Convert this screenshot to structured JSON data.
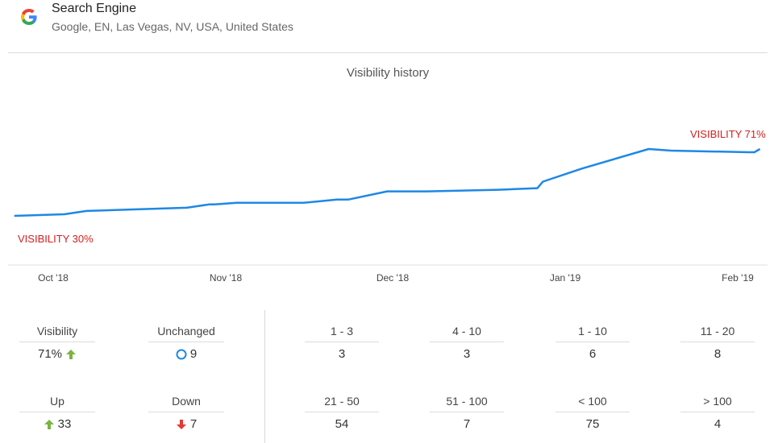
{
  "header": {
    "title": "Search Engine",
    "subtitle": "Google, EN, Las Vegas, NV, USA, United States",
    "logo_colors": [
      "#4285F4",
      "#EA4335",
      "#FBBC05",
      "#34A853"
    ]
  },
  "chart_data": {
    "type": "line",
    "title": "Visibility history",
    "x_tick_labels": [
      "Oct '18",
      "Nov '18",
      "Dec '18",
      "Jan '19",
      "Feb '19"
    ],
    "x": [
      "2018-09-24",
      "2018-10-03",
      "2018-10-07",
      "2018-10-25",
      "2018-10-29",
      "2018-10-30",
      "2018-11-03",
      "2018-11-09",
      "2018-11-15",
      "2018-11-21",
      "2018-11-23",
      "2018-11-30",
      "2018-12-07",
      "2018-12-20",
      "2018-12-27",
      "2018-12-28",
      "2019-01-04",
      "2019-01-16",
      "2019-01-20",
      "2019-02-03",
      "2019-02-04",
      "2019-02-05"
    ],
    "series": [
      {
        "values": [
          30,
          31,
          33,
          35,
          37,
          37,
          38,
          38,
          38,
          40,
          40,
          45,
          45,
          46,
          47,
          51,
          59,
          71,
          70,
          69,
          69,
          71
        ],
        "color": "#1e88e5"
      }
    ],
    "annotations": {
      "start": "VISIBILITY 30%",
      "end": "VISIBILITY 71%"
    },
    "annotation_color": "#d32020",
    "grid": false
  },
  "stats": {
    "visibility": {
      "label": "Visibility",
      "value": "71%",
      "icon": "arrow-up-icon"
    },
    "unchanged": {
      "label": "Unchanged",
      "value": "9",
      "icon": "circle-icon"
    },
    "up": {
      "label": "Up",
      "value": "33",
      "icon": "arrow-up-icon"
    },
    "down": {
      "label": "Down",
      "value": "7",
      "icon": "arrow-down-icon"
    },
    "up_color": "#7cb342",
    "down_color": "#e53935",
    "circle_color": "#1e88e5"
  },
  "ranges": [
    {
      "label": "1 - 3",
      "value": "3"
    },
    {
      "label": "4 - 10",
      "value": "3"
    },
    {
      "label": "1 - 10",
      "value": "6"
    },
    {
      "label": "11 - 20",
      "value": "8"
    },
    {
      "label": "21 - 50",
      "value": "54"
    },
    {
      "label": "51 - 100",
      "value": "7"
    },
    {
      "label": "< 100",
      "value": "75"
    },
    {
      "label": "> 100",
      "value": "4"
    }
  ]
}
